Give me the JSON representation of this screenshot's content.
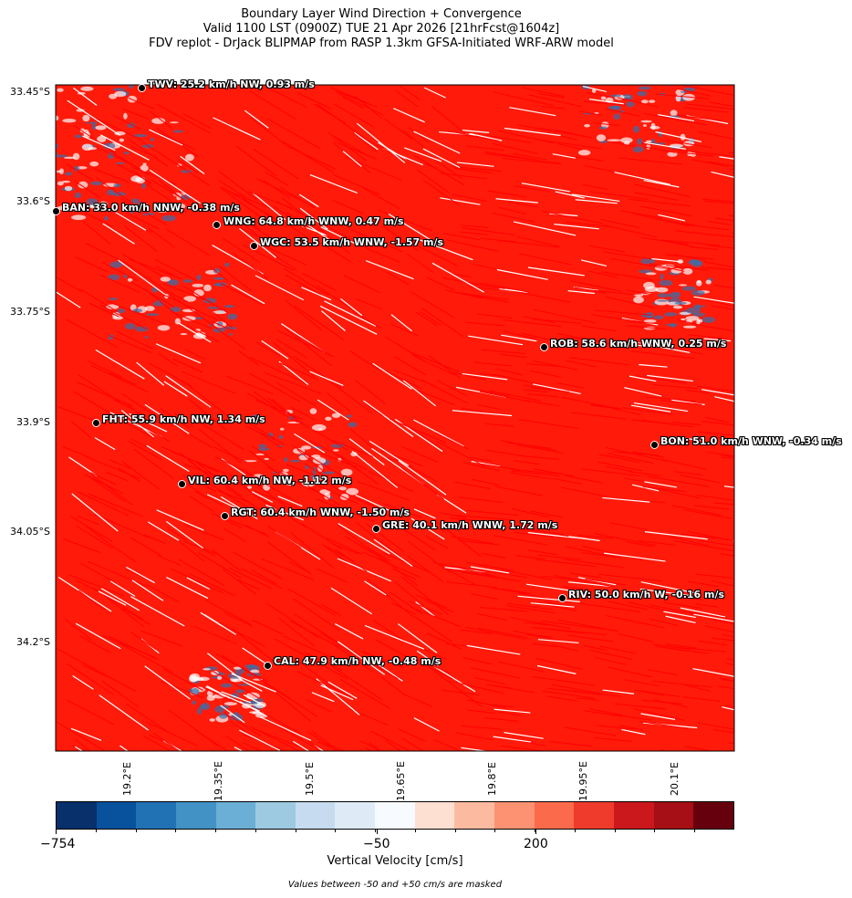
{
  "title": {
    "line1": "Boundary Layer Wind Direction + Convergence",
    "line2": "Valid 1100 LST (0900Z) TUE 21 Apr 2026 [21hrFcst@1604z]",
    "line3": "FDV replot - DrJack BLIPMAP from RASP 1.3km GFSA-Initiated WRF-ARW model"
  },
  "map": {
    "lat_range": [
      "33.45°S",
      "34.35°S"
    ],
    "lon_range": [
      "19.05°E",
      "20.16°E"
    ],
    "lat_ticks": [
      "33.45°S",
      "33.6°S",
      "33.75°S",
      "33.9°S",
      "34.05°S",
      "34.2°S"
    ],
    "lon_ticks": [
      "19.2°E",
      "19.35°E",
      "19.5°E",
      "19.65°E",
      "19.8°E",
      "19.95°E",
      "20.1°E"
    ],
    "wind_color": "#ff0000",
    "terrain_contour_color": "#2a4a6a"
  },
  "stations": [
    {
      "code": "TWV",
      "label": "TWV: 25.2 km/h NW, 0.93 m/s"
    },
    {
      "code": "BAN",
      "label": "BAN: 33.0 km/h NNW, -0.38 m/s"
    },
    {
      "code": "WNG",
      "label": "WNG: 64.8 km/h WNW, 0.47 m/s"
    },
    {
      "code": "WGC",
      "label": "WGC: 53.5 km/h WNW, -1.57 m/s"
    },
    {
      "code": "ROB",
      "label": "ROB: 58.6 km/h WNW, 0.25 m/s"
    },
    {
      "code": "FHT",
      "label": "FHT: 55.9 km/h NW, 1.34 m/s"
    },
    {
      "code": "BON",
      "label": "BON: 51.0 km/h WNW, -0.34 m/s"
    },
    {
      "code": "VIL",
      "label": "VIL: 60.4 km/h NW, -1.12 m/s"
    },
    {
      "code": "RGT",
      "label": "RGT: 60.4 km/h WNW, -1.50 m/s"
    },
    {
      "code": "GRE",
      "label": "GRE: 40.1 km/h WNW, 1.72 m/s"
    },
    {
      "code": "RIV",
      "label": "RIV: 50.0 km/h W, -0.16 m/s"
    },
    {
      "code": "CAL",
      "label": "CAL: 47.9 km/h NW, -0.48 m/s"
    }
  ],
  "colorbar": {
    "colors": [
      "#08306b",
      "#08519c",
      "#2171b5",
      "#4292c6",
      "#6baed6",
      "#9ecae1",
      "#c6dbef",
      "#deebf7",
      "#f7fbff",
      "#fee0d2",
      "#fcbba1",
      "#fc9272",
      "#fb6a4a",
      "#ef3b2c",
      "#cb181d",
      "#a50f15",
      "#67000d"
    ],
    "tick_labels": [
      "−754",
      "−50",
      "200"
    ],
    "label": "Vertical Velocity [cm/s]",
    "note": "Values between -50 and +50 cm/s are masked"
  }
}
